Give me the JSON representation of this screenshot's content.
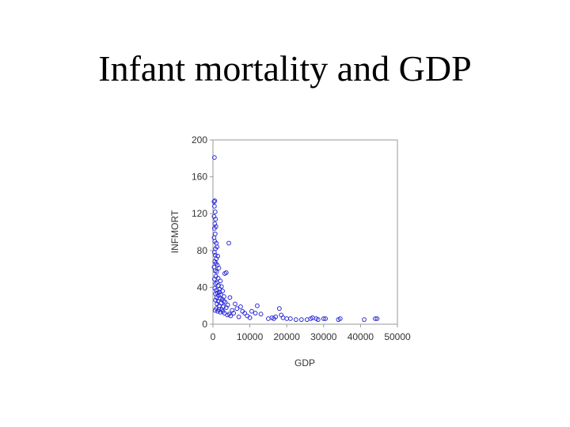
{
  "slide": {
    "title": "Infant mortality and GDP"
  },
  "chart_data": {
    "type": "scatter",
    "title": "",
    "xlabel": "GDP",
    "ylabel": "INFMORT",
    "xlim": [
      0,
      50000
    ],
    "ylim": [
      0,
      200
    ],
    "xticks": [
      0,
      10000,
      20000,
      30000,
      40000,
      50000
    ],
    "yticks": [
      0,
      40,
      80,
      120,
      160,
      200
    ],
    "grid": false,
    "marker_color": "#2a2ad6",
    "series": [
      {
        "points": [
          [
            400,
            181
          ],
          [
            300,
            133
          ],
          [
            500,
            134
          ],
          [
            400,
            128
          ],
          [
            600,
            122
          ],
          [
            300,
            117
          ],
          [
            700,
            114
          ],
          [
            500,
            109
          ],
          [
            400,
            104
          ],
          [
            800,
            106
          ],
          [
            600,
            98
          ],
          [
            300,
            94
          ],
          [
            500,
            90
          ],
          [
            900,
            88
          ],
          [
            1100,
            84
          ],
          [
            700,
            82
          ],
          [
            400,
            78
          ],
          [
            600,
            75
          ],
          [
            1300,
            74
          ],
          [
            900,
            71
          ],
          [
            500,
            68
          ],
          [
            800,
            66
          ],
          [
            1200,
            64
          ],
          [
            300,
            62
          ],
          [
            1600,
            61
          ],
          [
            600,
            58
          ],
          [
            1000,
            57
          ],
          [
            3600,
            56
          ],
          [
            3200,
            55
          ],
          [
            800,
            52
          ],
          [
            1400,
            50
          ],
          [
            400,
            49
          ],
          [
            2000,
            47
          ],
          [
            1100,
            45
          ],
          [
            700,
            44
          ],
          [
            1500,
            42
          ],
          [
            2300,
            41
          ],
          [
            500,
            39
          ],
          [
            1800,
            38
          ],
          [
            900,
            37
          ],
          [
            2600,
            36
          ],
          [
            1200,
            34
          ],
          [
            700,
            33
          ],
          [
            2100,
            32
          ],
          [
            1500,
            31
          ],
          [
            3000,
            30
          ],
          [
            1000,
            29
          ],
          [
            1900,
            28
          ],
          [
            2500,
            27
          ],
          [
            700,
            26
          ],
          [
            1400,
            25
          ],
          [
            3300,
            24
          ],
          [
            2200,
            23
          ],
          [
            1100,
            22
          ],
          [
            4000,
            21
          ],
          [
            1700,
            20
          ],
          [
            2800,
            19
          ],
          [
            3600,
            18
          ],
          [
            900,
            17
          ],
          [
            2400,
            16
          ],
          [
            5200,
            15
          ],
          [
            1300,
            14
          ],
          [
            2000,
            13
          ],
          [
            3100,
            12
          ],
          [
            4400,
            11
          ],
          [
            600,
            15
          ],
          [
            3900,
            10
          ],
          [
            4800,
            9
          ],
          [
            2700,
            14
          ],
          [
            1600,
            16
          ],
          [
            6000,
            22
          ],
          [
            6500,
            17
          ],
          [
            7500,
            19
          ],
          [
            5600,
            12
          ],
          [
            4300,
            88
          ],
          [
            4600,
            29
          ],
          [
            8000,
            14
          ],
          [
            8600,
            12
          ],
          [
            9300,
            9
          ],
          [
            7000,
            8
          ],
          [
            10000,
            7
          ],
          [
            10500,
            14
          ],
          [
            11500,
            12
          ],
          [
            12000,
            20
          ],
          [
            13000,
            11
          ],
          [
            15000,
            6
          ],
          [
            16000,
            7
          ],
          [
            17000,
            8
          ],
          [
            18000,
            17
          ],
          [
            18500,
            10
          ],
          [
            19000,
            7
          ],
          [
            16500,
            6
          ],
          [
            20000,
            6
          ],
          [
            21000,
            6
          ],
          [
            22500,
            5
          ],
          [
            24000,
            5
          ],
          [
            25500,
            5
          ],
          [
            26500,
            6
          ],
          [
            27000,
            7
          ],
          [
            28000,
            6
          ],
          [
            28500,
            5
          ],
          [
            30000,
            6
          ],
          [
            30500,
            6
          ],
          [
            34000,
            5
          ],
          [
            34500,
            6
          ],
          [
            41000,
            5
          ],
          [
            44000,
            6
          ],
          [
            44500,
            6
          ],
          [
            2900,
            25
          ],
          [
            1800,
            35
          ]
        ]
      }
    ]
  }
}
